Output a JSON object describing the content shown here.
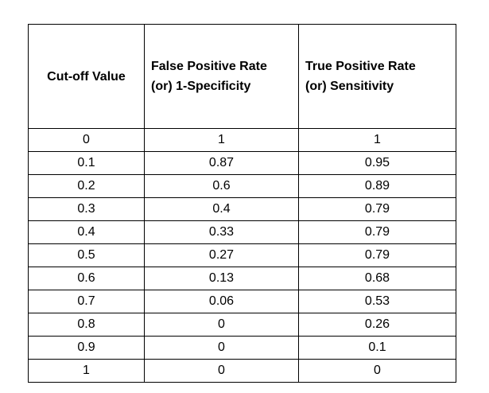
{
  "table": {
    "headers": {
      "cutoff": "Cut-off Value",
      "fpr_line1": "False Positive Rate",
      "fpr_line2": "(or) 1-Specificity",
      "tpr_line1": "True Positive Rate",
      "tpr_line2": "(or) Sensitivity"
    },
    "rows": [
      {
        "cutoff": "0",
        "fpr": "1",
        "tpr": "1"
      },
      {
        "cutoff": "0.1",
        "fpr": "0.87",
        "tpr": "0.95"
      },
      {
        "cutoff": "0.2",
        "fpr": "0.6",
        "tpr": "0.89"
      },
      {
        "cutoff": "0.3",
        "fpr": "0.4",
        "tpr": "0.79"
      },
      {
        "cutoff": "0.4",
        "fpr": "0.33",
        "tpr": "0.79"
      },
      {
        "cutoff": "0.5",
        "fpr": "0.27",
        "tpr": "0.79"
      },
      {
        "cutoff": "0.6",
        "fpr": "0.13",
        "tpr": "0.68"
      },
      {
        "cutoff": "0.7",
        "fpr": "0.06",
        "tpr": "0.53"
      },
      {
        "cutoff": "0.8",
        "fpr": "0",
        "tpr": "0.26"
      },
      {
        "cutoff": "0.9",
        "fpr": "0",
        "tpr": "0.1"
      },
      {
        "cutoff": "1",
        "fpr": "0",
        "tpr": "0"
      }
    ]
  }
}
